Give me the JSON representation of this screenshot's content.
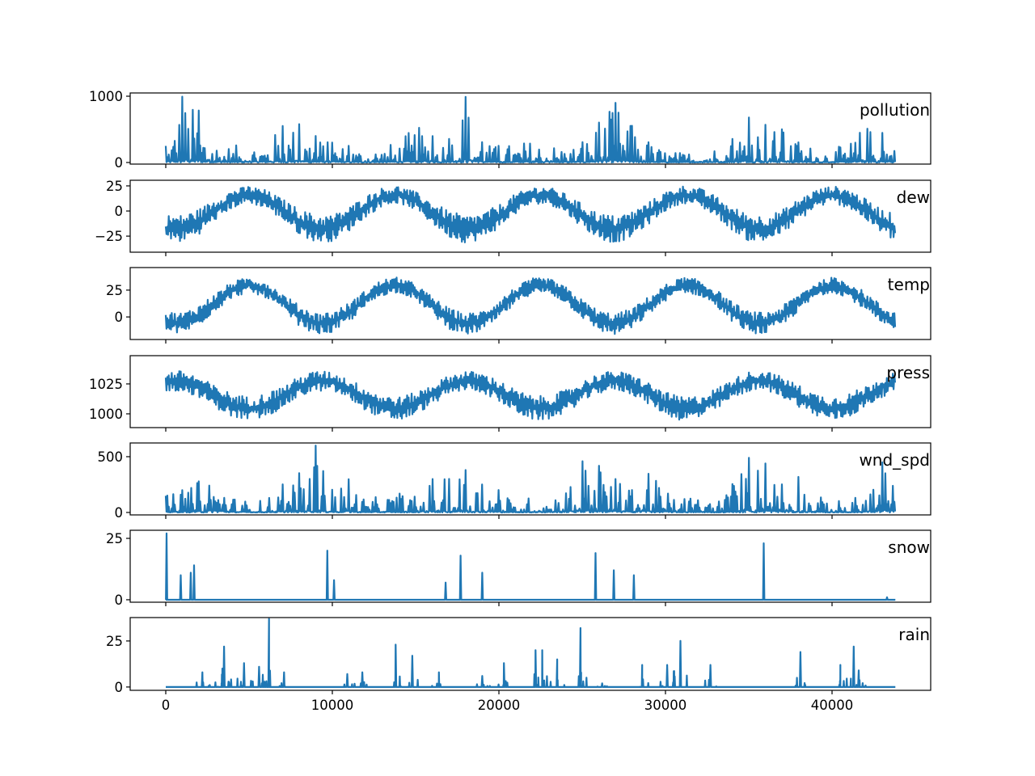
{
  "chart_data": {
    "type": "line",
    "layout": "7 vertically stacked subplots sharing x axis",
    "color": "#1f77b4",
    "xlim": [
      -2136,
      45922
    ],
    "xticks": [
      0,
      10000,
      20000,
      30000,
      40000
    ],
    "xtick_labels": [
      "0",
      "10000",
      "20000",
      "30000",
      "40000"
    ],
    "x_extent": [
      0,
      43800
    ],
    "envelope_x": [
      0,
      1000,
      2000,
      3000,
      4000,
      5000,
      6000,
      7000,
      8000,
      9000,
      10000,
      11000,
      12000,
      13000,
      14000,
      15000,
      16000,
      17000,
      18000,
      19000,
      20000,
      21000,
      22000,
      23000,
      24000,
      25000,
      26000,
      27000,
      28000,
      29000,
      30000,
      31000,
      32000,
      33000,
      34000,
      35000,
      36000,
      37000,
      38000,
      39000,
      40000,
      41000,
      42000,
      43000,
      43800
    ],
    "series": [
      {
        "name": "pollution",
        "ylim": [
          -24,
          1049
        ],
        "yticks": [
          0,
          1000
        ],
        "ytick_labels": [
          "0",
          "1000"
        ],
        "min": [
          0,
          0,
          0,
          0,
          0,
          0,
          0,
          0,
          0,
          0,
          0,
          0,
          0,
          0,
          0,
          0,
          0,
          0,
          0,
          0,
          0,
          0,
          0,
          0,
          0,
          0,
          0,
          0,
          0,
          0,
          0,
          0,
          0,
          0,
          0,
          0,
          0,
          0,
          0,
          0,
          0,
          0,
          0,
          0,
          0
        ],
        "max": [
          250,
          1000,
          780,
          350,
          250,
          300,
          330,
          550,
          580,
          400,
          300,
          250,
          200,
          250,
          330,
          570,
          400,
          350,
          990,
          300,
          250,
          300,
          350,
          300,
          250,
          300,
          600,
          900,
          550,
          300,
          200,
          150,
          200,
          250,
          350,
          680,
          570,
          500,
          300,
          250,
          200,
          300,
          600,
          450,
          300
        ]
      },
      {
        "name": "dew",
        "ylim": [
          -41,
          30.6
        ],
        "yticks": [
          25,
          0,
          -25
        ],
        "ytick_labels": [
          "25",
          "0",
          "−25"
        ],
        "min": [
          -30,
          -31,
          -23,
          -9,
          3,
          8,
          3,
          -9,
          -23,
          -31,
          -30,
          -20,
          -6,
          5,
          8,
          1,
          -13,
          -26,
          -32,
          -28,
          -17,
          -3,
          7,
          7,
          -2,
          -16,
          -28,
          -32,
          -26,
          -13,
          0,
          8,
          5,
          -5,
          -19,
          -30,
          -31,
          -23,
          -10,
          3,
          8,
          3,
          -9,
          -23,
          -30
        ],
        "max": [
          -4,
          -4,
          2,
          12,
          21,
          25,
          21,
          12,
          2,
          -4,
          -4,
          4,
          15,
          23,
          25,
          19,
          9,
          0,
          -5,
          -2,
          6,
          17,
          24,
          24,
          17,
          7,
          -2,
          -5,
          0,
          9,
          19,
          25,
          23,
          15,
          4,
          -3,
          -5,
          1,
          12,
          21,
          25,
          22,
          12,
          2,
          -4
        ]
      },
      {
        "name": "temp",
        "ylim": [
          -21,
          46
        ],
        "yticks": [
          25,
          0
        ],
        "ytick_labels": [
          "25",
          "0"
        ],
        "min": [
          -15,
          -16,
          -8,
          6,
          18,
          23,
          18,
          6,
          -8,
          -16,
          -15,
          -5,
          9,
          20,
          23,
          16,
          2,
          -11,
          -17,
          -13,
          -2,
          12,
          22,
          22,
          13,
          -1,
          -13,
          -17,
          -11,
          2,
          15,
          23,
          20,
          10,
          -4,
          -15,
          -16,
          -8,
          5,
          18,
          23,
          18,
          6,
          -8,
          -15
        ],
        "max": [
          5,
          4,
          11,
          22,
          33,
          37,
          33,
          22,
          11,
          4,
          5,
          13,
          25,
          35,
          37,
          31,
          19,
          8,
          3,
          6,
          16,
          28,
          36,
          36,
          28,
          16,
          6,
          3,
          8,
          19,
          30,
          37,
          35,
          26,
          14,
          5,
          4,
          10,
          22,
          32,
          37,
          33,
          23,
          11,
          5
        ]
      },
      {
        "name": "press",
        "ylim": [
          988.5,
          1048.6
        ],
        "yticks": [
          1025,
          1000
        ],
        "ytick_labels": [
          "1025",
          "1000"
        ],
        "min": [
          1019,
          1019,
          1014,
          1005,
          997,
          994,
          997,
          1005,
          1014,
          1019,
          1019,
          1012,
          1003,
          996,
          994,
          999,
          1008,
          1016,
          1020,
          1018,
          1010,
          1001,
          995,
          995,
          1001,
          1010,
          1017,
          1020,
          1016,
          1008,
          999,
          994,
          996,
          1003,
          1012,
          1019,
          1020,
          1014,
          1006,
          998,
          994,
          997,
          1005,
          1014,
          1019
        ],
        "max": [
          1035,
          1036,
          1031,
          1023,
          1017,
          1014,
          1017,
          1023,
          1031,
          1036,
          1035,
          1029,
          1022,
          1016,
          1014,
          1018,
          1025,
          1032,
          1036,
          1034,
          1028,
          1020,
          1015,
          1015,
          1020,
          1027,
          1034,
          1036,
          1033,
          1026,
          1018,
          1014,
          1015,
          1021,
          1029,
          1035,
          1036,
          1031,
          1024,
          1017,
          1014,
          1017,
          1023,
          1031,
          1035
        ]
      },
      {
        "name": "wnd_spd",
        "ylim": [
          -22,
          623
        ],
        "yticks": [
          500,
          0
        ],
        "ytick_labels": [
          "500",
          "0"
        ],
        "min": [
          0,
          0,
          0,
          0,
          0,
          0,
          0,
          0,
          0,
          0,
          0,
          0,
          0,
          0,
          0,
          0,
          0,
          0,
          0,
          0,
          0,
          0,
          0,
          0,
          0,
          0,
          0,
          0,
          0,
          0,
          0,
          0,
          0,
          0,
          0,
          0,
          0,
          0,
          0,
          0,
          0,
          0,
          0,
          0,
          0
        ],
        "max": [
          150,
          200,
          280,
          430,
          150,
          100,
          120,
          250,
          350,
          600,
          200,
          300,
          120,
          150,
          200,
          150,
          300,
          300,
          380,
          250,
          200,
          100,
          150,
          150,
          250,
          460,
          420,
          300,
          200,
          350,
          200,
          150,
          150,
          100,
          250,
          490,
          440,
          250,
          320,
          150,
          120,
          100,
          200,
          450,
          420
        ]
      },
      {
        "name": "snow",
        "ylim": [
          -1,
          28.3
        ],
        "yticks": [
          25,
          0
        ],
        "ytick_labels": [
          "25",
          "0"
        ],
        "baseline": 0,
        "events": [
          [
            50,
            27
          ],
          [
            900,
            10
          ],
          [
            1500,
            11
          ],
          [
            1700,
            14
          ],
          [
            9700,
            20
          ],
          [
            10100,
            8
          ],
          [
            16800,
            7
          ],
          [
            17700,
            18
          ],
          [
            19000,
            11
          ],
          [
            25800,
            19
          ],
          [
            26900,
            12
          ],
          [
            28100,
            10
          ],
          [
            35900,
            23
          ],
          [
            43300,
            1
          ]
        ]
      },
      {
        "name": "rain",
        "ylim": [
          -1.8,
          37.7
        ],
        "yticks": [
          25,
          0
        ],
        "ytick_labels": [
          "25",
          "0"
        ],
        "baseline": 0,
        "events": [
          [
            2200,
            8
          ],
          [
            3400,
            10
          ],
          [
            3500,
            22
          ],
          [
            4700,
            13
          ],
          [
            5600,
            11
          ],
          [
            6200,
            37
          ],
          [
            7100,
            8
          ],
          [
            10900,
            7
          ],
          [
            11800,
            8
          ],
          [
            13800,
            23
          ],
          [
            14800,
            17
          ],
          [
            16400,
            8
          ],
          [
            19000,
            6
          ],
          [
            20300,
            13
          ],
          [
            22200,
            20
          ],
          [
            22600,
            20
          ],
          [
            23500,
            15
          ],
          [
            24900,
            32
          ],
          [
            26200,
            2
          ],
          [
            28600,
            12
          ],
          [
            30100,
            12
          ],
          [
            30900,
            25
          ],
          [
            32700,
            12
          ],
          [
            38100,
            19
          ],
          [
            40500,
            12
          ],
          [
            41300,
            22
          ],
          [
            41600,
            9
          ]
        ]
      }
    ]
  }
}
